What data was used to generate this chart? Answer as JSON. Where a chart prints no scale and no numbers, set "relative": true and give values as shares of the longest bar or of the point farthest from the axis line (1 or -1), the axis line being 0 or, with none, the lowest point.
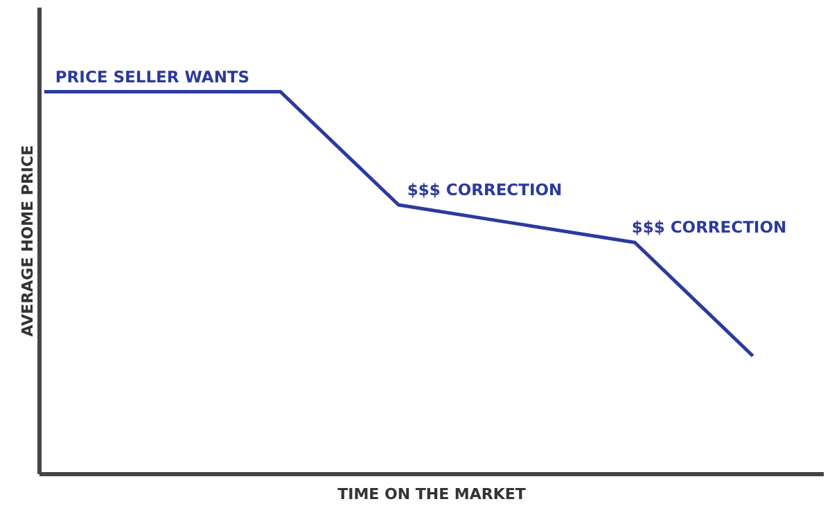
{
  "chart_data": {
    "type": "line",
    "relative": true,
    "xlabel": "TIME ON THE MARKET",
    "ylabel": "AVERAGE HOME PRICE",
    "categories": [
      null,
      null,
      null,
      null,
      null,
      null,
      null
    ],
    "series": [
      {
        "color": "#2b3a9e",
        "values": [
          1,
          1,
          1,
          0.704,
          0.655,
          0.606,
          0.309
        ]
      }
    ],
    "annotations": [
      "PRICE SELLER WANTS",
      "$$$ CORRECTION",
      "$$$ CORRECTION"
    ],
    "grid": false
  }
}
